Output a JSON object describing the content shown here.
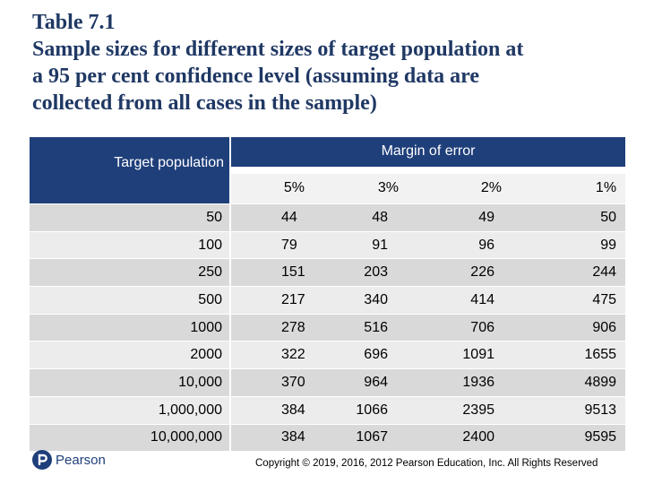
{
  "title": {
    "line1": "Table 7.1",
    "line2": "Sample sizes for different sizes of target population at",
    "line3": "a 95 per cent confidence level (assuming data are",
    "line4": "collected from all cases in the sample)"
  },
  "table": {
    "row_header": "Target population",
    "group_header": "Margin of error",
    "columns": [
      "5%",
      "3%",
      "2%",
      "1%"
    ],
    "rows": [
      {
        "population": "50",
        "values": [
          "44",
          "48",
          "49",
          "50"
        ]
      },
      {
        "population": "100",
        "values": [
          "79",
          "91",
          "96",
          "99"
        ]
      },
      {
        "population": "250",
        "values": [
          "151",
          "203",
          "226",
          "244"
        ]
      },
      {
        "population": "500",
        "values": [
          "217",
          "340",
          "414",
          "475"
        ]
      },
      {
        "population": "1000",
        "values": [
          "278",
          "516",
          "706",
          "906"
        ]
      },
      {
        "population": "2000",
        "values": [
          "322",
          "696",
          "1091",
          "1655"
        ]
      },
      {
        "population": "10,000",
        "values": [
          "370",
          "964",
          "1936",
          "4899"
        ]
      },
      {
        "population": "1,000,000",
        "values": [
          "384",
          "1066",
          "2395",
          "9513"
        ]
      },
      {
        "population": "10,000,000",
        "values": [
          "384",
          "1067",
          "2400",
          "9595"
        ]
      }
    ]
  },
  "footer": {
    "logo_text": "Pearson",
    "logo_icon": "pearson-p-icon",
    "copyright": "Copyright © 2019, 2016, 2012 Pearson Education, Inc. All Rights Reserved"
  },
  "colors": {
    "title": "#1f3864",
    "header_bg": "#1f3f7a",
    "row_odd": "#d9d9d9",
    "row_even": "#ececec"
  }
}
